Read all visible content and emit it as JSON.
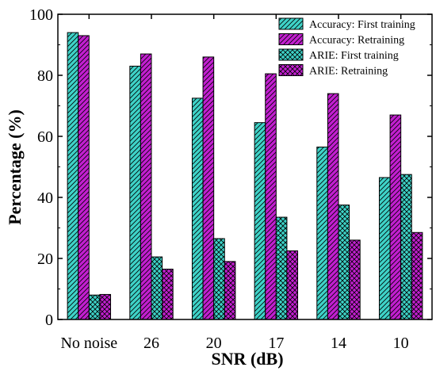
{
  "chart_data": {
    "type": "bar",
    "title": "",
    "xlabel": "SNR (dB)",
    "ylabel": "Percentage (%)",
    "categories": [
      "No noise",
      "26",
      "20",
      "17",
      "14",
      "10"
    ],
    "ylim": [
      0,
      100
    ],
    "yticks": [
      0,
      20,
      40,
      60,
      80,
      100
    ],
    "grid": false,
    "legend_position": "top-right",
    "series": [
      {
        "name": "Accuracy: First training",
        "values": [
          94,
          83,
          72.5,
          64.5,
          56.5,
          46.5
        ],
        "color": "#3ED3C8",
        "pattern": "diagonal-forward"
      },
      {
        "name": "Accuracy: Retraining",
        "values": [
          93,
          87,
          86,
          80.5,
          74,
          67
        ],
        "color": "#C21FD0",
        "pattern": "diagonal-forward"
      },
      {
        "name": "ARIE: First training",
        "values": [
          8,
          20.5,
          26.5,
          33.5,
          37.5,
          47.5
        ],
        "color": "#3ED3C8",
        "pattern": "crosshatch"
      },
      {
        "name": "ARIE: Retraining",
        "values": [
          8.2,
          16.5,
          19,
          22.5,
          26,
          28.5
        ],
        "color": "#C21FD0",
        "pattern": "crosshatch"
      }
    ]
  }
}
